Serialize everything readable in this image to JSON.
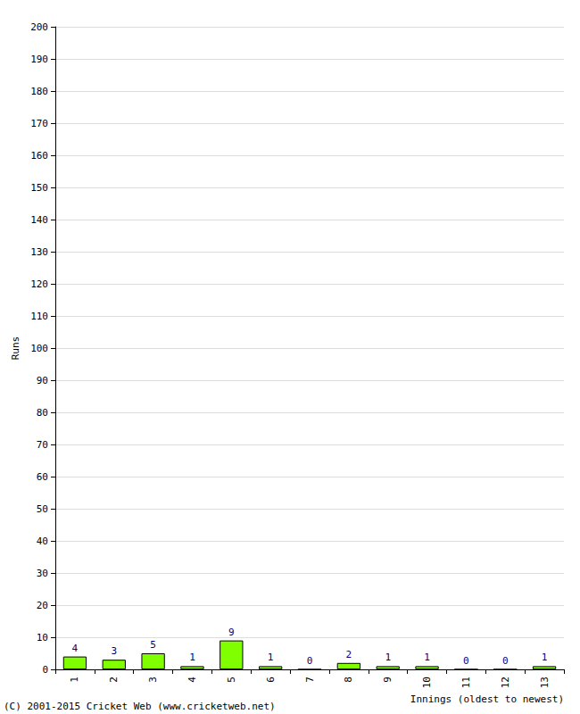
{
  "chart_data": {
    "type": "bar",
    "categories": [
      "1",
      "2",
      "3",
      "4",
      "5",
      "6",
      "7",
      "8",
      "9",
      "10",
      "11",
      "12",
      "13"
    ],
    "values": [
      4,
      3,
      5,
      1,
      9,
      1,
      0,
      2,
      1,
      1,
      0,
      0,
      1
    ],
    "color": "#80ff00",
    "x_label": "Innings (oldest to newest)",
    "y_label": "Runs",
    "ylim": [
      0,
      200
    ],
    "yticks": [
      0,
      10,
      20,
      30,
      40,
      50,
      60,
      70,
      80,
      90,
      100,
      110,
      120,
      130,
      140,
      150,
      160,
      170,
      180,
      190,
      200
    ],
    "grid": true,
    "data_labels": true,
    "annotations": [
      "(C) 2001-2015 Cricket Web (www.cricketweb.net)"
    ]
  }
}
